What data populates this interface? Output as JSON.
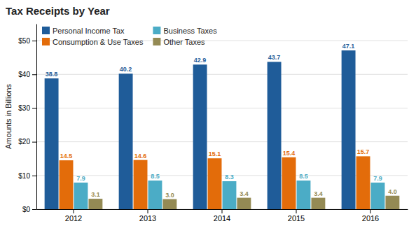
{
  "chart_data": {
    "type": "bar",
    "title": "Tax Receipts by Year",
    "categories": [
      "2012",
      "2013",
      "2014",
      "2015",
      "2016"
    ],
    "series": [
      {
        "name": "Personal Income Tax",
        "color": "#1F5C99",
        "values": [
          38.8,
          40.2,
          42.9,
          43.7,
          47.1
        ]
      },
      {
        "name": "Consumption & Use Taxes",
        "color": "#E36C0A",
        "values": [
          14.5,
          14.6,
          15.1,
          15.4,
          15.7
        ]
      },
      {
        "name": "Business Taxes",
        "color": "#4BACC6",
        "values": [
          7.9,
          8.5,
          8.3,
          8.5,
          7.9
        ]
      },
      {
        "name": "Other Taxes",
        "color": "#948A54",
        "values": [
          3.1,
          3.0,
          3.4,
          3.4,
          4.0
        ],
        "value_labels": [
          "3.1",
          "3.0",
          "3.4",
          "3.4",
          "4.0"
        ]
      }
    ],
    "y_label": "Amounts in Billions",
    "ylim": [
      0,
      55
    ],
    "yticks": [
      {
        "value": 0,
        "label": "$0"
      },
      {
        "value": 10,
        "label": "$10"
      },
      {
        "value": 20,
        "label": "$20"
      },
      {
        "value": 30,
        "label": "$30"
      },
      {
        "value": 40,
        "label": "$40"
      },
      {
        "value": 50,
        "label": "$50"
      }
    ],
    "grid": true,
    "legend": "upper left",
    "data_labels": true
  }
}
